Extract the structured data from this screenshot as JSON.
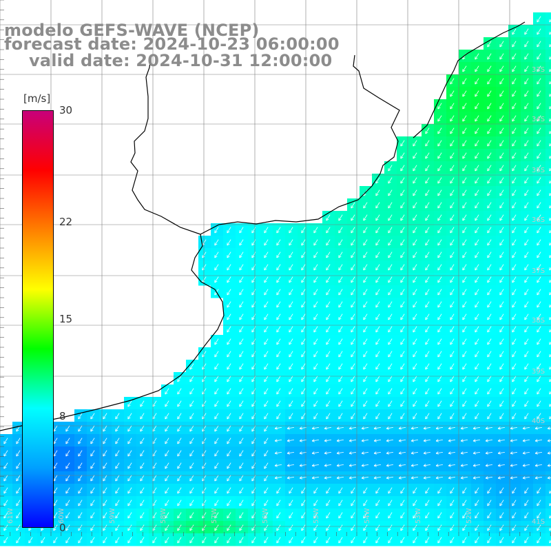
{
  "title": {
    "line1": "modelo GEFS-WAVE (NCEP)",
    "line2": "forecast date: 2024-10-23 06:00:00",
    "line3": "valid date: 2024-10-31 12:00:00"
  },
  "colorbar": {
    "unit": "[m/s]",
    "ticks": [
      {
        "label": "30",
        "value": 30
      },
      {
        "label": "22",
        "value": 22
      },
      {
        "label": "15",
        "value": 15
      },
      {
        "label": "8",
        "value": 8
      },
      {
        "label": "0",
        "value": 0
      }
    ],
    "range": [
      0,
      30
    ],
    "color_stops": [
      "#0000ff",
      "#00a0ff",
      "#00ffff",
      "#00ff00",
      "#ffff00",
      "#ff8000",
      "#ff0000",
      "#c8007a"
    ]
  },
  "lat_labels": [
    "33S",
    "34S",
    "35S",
    "36S",
    "37S",
    "38S",
    "39S",
    "40S",
    "41S"
  ],
  "lon_labels": [
    "61W",
    "60W",
    "59W",
    "58W",
    "57W",
    "56W",
    "55W",
    "54W",
    "53W",
    "52W"
  ],
  "colors": {
    "land": "#ffffff",
    "coast": "#000000",
    "grid": "#7a7a7a",
    "arrow": "#ffffff"
  }
}
